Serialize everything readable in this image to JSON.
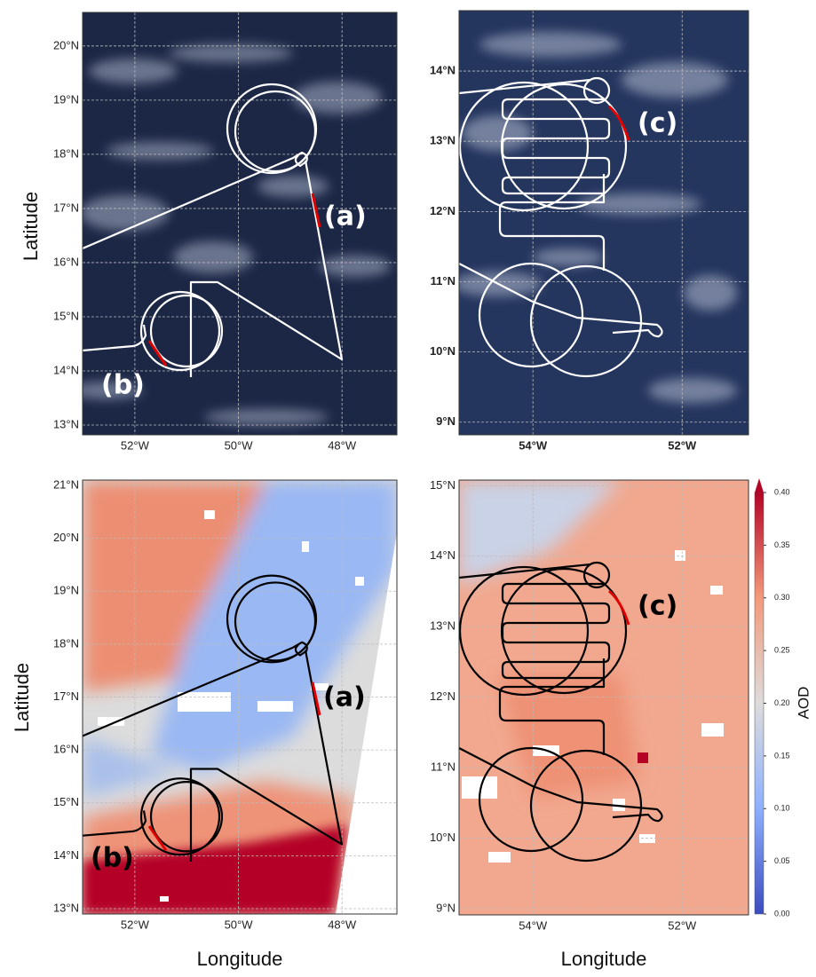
{
  "chart_data": [
    {
      "type": "map",
      "grid": true,
      "xlim": [
        -53.01,
        -46.94
      ],
      "ylim": [
        12.82,
        20.62
      ],
      "xticks": [
        {
          "value": -52,
          "label": "52°W"
        },
        {
          "value": -50,
          "label": "50°W"
        },
        {
          "value": -48,
          "label": "48°W"
        }
      ],
      "yticks": [
        {
          "value": 13,
          "label": "13°N"
        },
        {
          "value": 14,
          "label": "14°N"
        },
        {
          "value": 15,
          "label": "15°N"
        },
        {
          "value": 16,
          "label": "16°N"
        },
        {
          "value": 17,
          "label": "17°N"
        },
        {
          "value": 18,
          "label": "18°N"
        },
        {
          "value": 19,
          "label": "19°N"
        },
        {
          "value": 20,
          "label": "20°N"
        }
      ],
      "ylabel": "Latitude",
      "annotations": [
        "(a)",
        "(b)"
      ]
    },
    {
      "type": "map",
      "grid": true,
      "xlim": [
        -54.99,
        -51.11
      ],
      "ylim": [
        8.82,
        14.86
      ],
      "xticks": [
        {
          "value": -54,
          "label": "54°W"
        },
        {
          "value": -52,
          "label": "52°W"
        }
      ],
      "yticks": [
        {
          "value": 9,
          "label": "9°N"
        },
        {
          "value": 10,
          "label": "10°N"
        },
        {
          "value": 11,
          "label": "11°N"
        },
        {
          "value": 12,
          "label": "12°N"
        },
        {
          "value": 13,
          "label": "13°N"
        },
        {
          "value": 14,
          "label": "14°N"
        }
      ],
      "annotations": [
        "(c)"
      ]
    },
    {
      "type": "map",
      "grid": true,
      "xlim": [
        -53.01,
        -46.94
      ],
      "ylim": [
        12.9,
        21.1
      ],
      "xticks": [
        {
          "value": -52,
          "label": "52°W"
        },
        {
          "value": -50,
          "label": "50°W"
        },
        {
          "value": -48,
          "label": "48°W"
        }
      ],
      "yticks": [
        {
          "value": 13,
          "label": "13°N"
        },
        {
          "value": 14,
          "label": "14°N"
        },
        {
          "value": 15,
          "label": "15°N"
        },
        {
          "value": 16,
          "label": "16°N"
        },
        {
          "value": 17,
          "label": "17°N"
        },
        {
          "value": 18,
          "label": "18°N"
        },
        {
          "value": 19,
          "label": "19°N"
        },
        {
          "value": 20,
          "label": "20°N"
        },
        {
          "value": 21,
          "label": "21°N"
        }
      ],
      "xlabel": "Longitude",
      "ylabel": "Latitude",
      "annotations": [
        "(a)",
        "(b)"
      ]
    },
    {
      "type": "map",
      "grid": true,
      "xlim": [
        -54.99,
        -51.11
      ],
      "ylim": [
        8.91,
        15.08
      ],
      "xticks": [
        {
          "value": -54,
          "label": "54°W"
        },
        {
          "value": -52,
          "label": "52°W"
        }
      ],
      "yticks": [
        {
          "value": 9,
          "label": "9°N"
        },
        {
          "value": 10,
          "label": "10°N"
        },
        {
          "value": 11,
          "label": "11°N"
        },
        {
          "value": 12,
          "label": "12°N"
        },
        {
          "value": 13,
          "label": "13°N"
        },
        {
          "value": 14,
          "label": "14°N"
        },
        {
          "value": 15,
          "label": "15°N"
        }
      ],
      "xlabel": "Longitude",
      "annotations": [
        "(c)"
      ],
      "colorbar": {
        "label": "AOD",
        "lim": [
          0,
          0.4
        ],
        "ticks": [
          {
            "value": 0,
            "label": "0.00"
          },
          {
            "value": 0.05,
            "label": "0.05"
          },
          {
            "value": 0.1,
            "label": "0.10"
          },
          {
            "value": 0.15,
            "label": "0.15"
          },
          {
            "value": 0.2,
            "label": "0.20"
          },
          {
            "value": 0.25,
            "label": "0.25"
          },
          {
            "value": 0.3,
            "label": "0.30"
          },
          {
            "value": 0.35,
            "label": "0.35"
          },
          {
            "value": 0.4,
            "label": "0.40"
          }
        ]
      }
    }
  ]
}
